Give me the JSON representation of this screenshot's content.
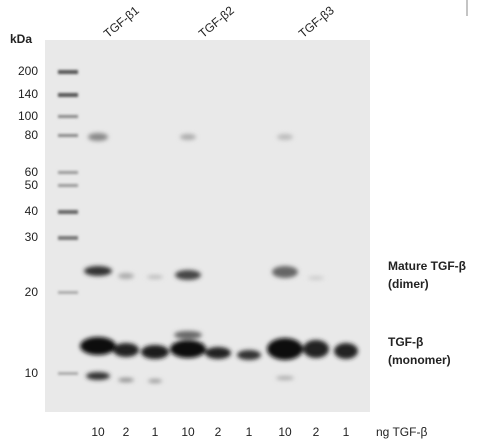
{
  "axis_title": "kDa",
  "markers": [
    200,
    140,
    100,
    80,
    60,
    50,
    40,
    30,
    20,
    10
  ],
  "lanes": [
    "TGF-β1",
    "TGF-β2",
    "TGF-β3"
  ],
  "amounts": [
    10,
    2,
    1,
    10,
    2,
    1,
    10,
    2,
    1
  ],
  "amount_unit": "ng TGF-β",
  "annotations": [
    {
      "line1": "Mature TGF-β",
      "line2": "(dimer)"
    },
    {
      "line1": "TGF-β",
      "line2": "(monomer)"
    }
  ]
}
